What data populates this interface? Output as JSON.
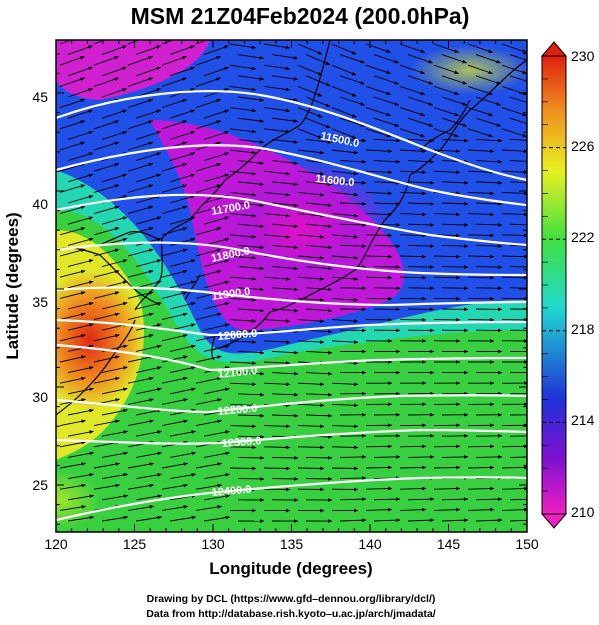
{
  "title": "MSM 21Z04Feb2024 (200.0hPa)",
  "axes": {
    "xlabel": "Longitude (degrees)",
    "ylabel": "Latitude  (degrees)",
    "xticks": [
      "120",
      "125",
      "130",
      "135",
      "140",
      "145",
      "150"
    ],
    "yticks": [
      "25",
      "30",
      "35",
      "40",
      "45"
    ]
  },
  "colorbar": {
    "ticks": [
      "230",
      "226",
      "222",
      "218",
      "214",
      "210"
    ],
    "min": 210,
    "max": 230
  },
  "contour_labels": [
    "11500.0",
    "11600.0",
    "11700.0",
    "11800.0",
    "11900.0",
    "12000.0",
    "12100.0",
    "12200.0",
    "12300.0",
    "12400.0"
  ],
  "credits": [
    "Drawing by DCL (https://www.gfd–dennou.org/library/dcl/)",
    "Data from http://database.rish.kyoto–u.ac.jp/arch/jmadata/"
  ],
  "colors": {
    "low": "#d400c8",
    "mid_blue": "#2040e8",
    "cyan": "#20e0e0",
    "green": "#30d040",
    "yellow": "#e8f020",
    "high": "#e02010",
    "contour": "#ffffff",
    "vector": "#000000"
  }
}
